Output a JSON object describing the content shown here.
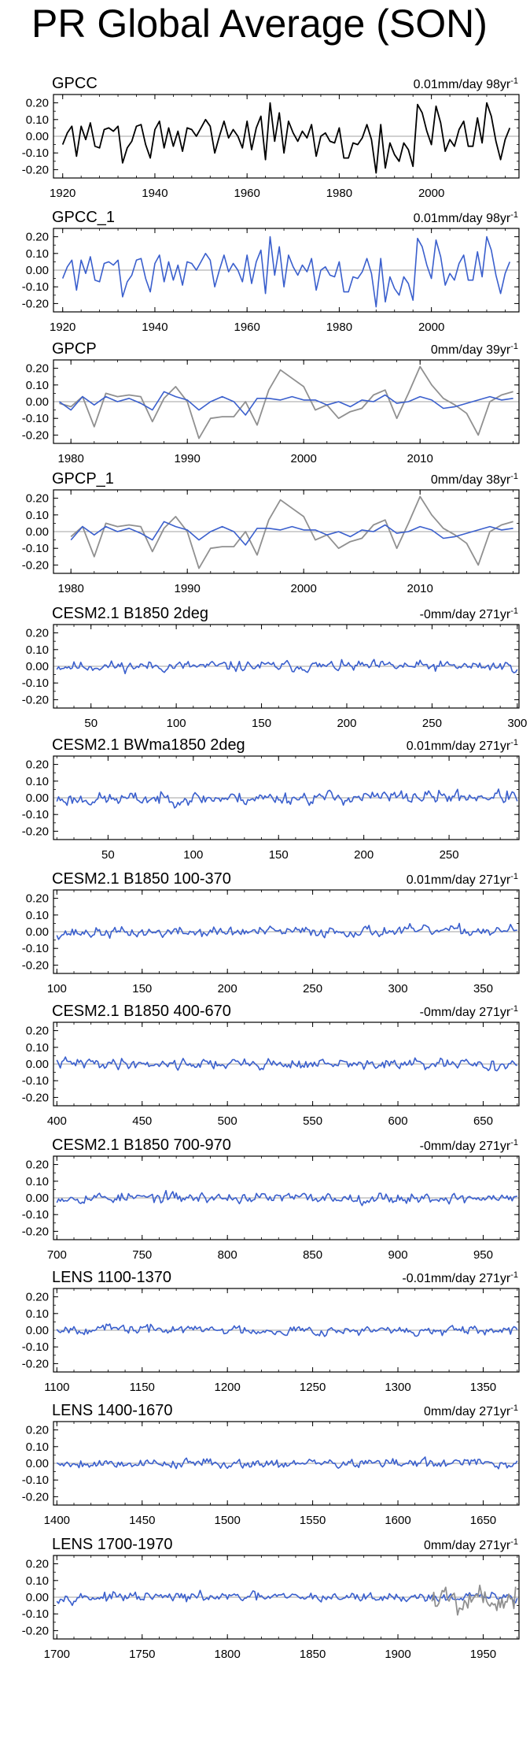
{
  "title": "PR Global Average (SON)",
  "colors": {
    "obs": "#000000",
    "model": "#3a5fcd",
    "gray": "#909090",
    "zero": "#a0a0a0",
    "frame": "#000000"
  },
  "chart_data": [
    {
      "type": "line",
      "label": "GPCC",
      "trend": "0.01mm/day 98yr",
      "trend_sup": "-1",
      "xlim": [
        1918,
        2019
      ],
      "ylim": [
        -0.25,
        0.25
      ],
      "yticks": [
        "0.20",
        "0.10",
        "0.00",
        "-0.10",
        "-0.20"
      ],
      "xticks": [
        "1920",
        "1940",
        "1960",
        "1980",
        "2000"
      ],
      "series": [
        {
          "name": "GPCC",
          "color": "#000000",
          "x_start": 1920,
          "x_step": 1,
          "values": [
            -0.05,
            0.02,
            0.06,
            -0.12,
            0.06,
            -0.02,
            0.08,
            -0.06,
            -0.07,
            0.04,
            0.05,
            0.03,
            0.06,
            -0.16,
            -0.07,
            -0.03,
            0.06,
            0.07,
            -0.05,
            -0.13,
            0.04,
            0.09,
            -0.07,
            0.05,
            -0.06,
            0.03,
            -0.09,
            0.05,
            0.04,
            0.0,
            0.05,
            0.1,
            0.06,
            -0.1,
            0.0,
            0.09,
            -0.01,
            0.04,
            0.0,
            -0.07,
            0.09,
            -0.08,
            0.05,
            0.12,
            -0.14,
            0.2,
            -0.03,
            0.14,
            -0.1,
            0.09,
            0.02,
            -0.03,
            0.03,
            -0.01,
            0.07,
            -0.12,
            0.0,
            0.02,
            -0.03,
            -0.04,
            0.05,
            -0.13,
            -0.13,
            -0.04,
            -0.05,
            -0.01,
            0.07,
            -0.02,
            -0.22,
            0.07,
            -0.19,
            -0.04,
            -0.11,
            -0.15,
            -0.04,
            -0.08,
            -0.18,
            0.19,
            0.14,
            0.03,
            -0.05,
            0.18,
            0.08,
            -0.09,
            -0.02,
            -0.06,
            0.04,
            0.09,
            -0.06,
            -0.06,
            0.11,
            -0.04,
            0.2,
            0.12,
            -0.03,
            -0.14,
            -0.02,
            0.05
          ]
        }
      ]
    },
    {
      "type": "line",
      "label": "GPCC_1",
      "trend": "0.01mm/day 98yr",
      "trend_sup": "-1",
      "xlim": [
        1918,
        2019
      ],
      "ylim": [
        -0.25,
        0.25
      ],
      "yticks": [
        "0.20",
        "0.10",
        "0.00",
        "-0.10",
        "-0.20"
      ],
      "xticks": [
        "1920",
        "1940",
        "1960",
        "1980",
        "2000"
      ],
      "series": [
        {
          "name": "GPCC_1",
          "color": "#3a5fcd",
          "x_start": 1920,
          "x_step": 1,
          "values": [
            -0.05,
            0.02,
            0.06,
            -0.12,
            0.06,
            -0.02,
            0.08,
            -0.06,
            -0.07,
            0.04,
            0.05,
            0.03,
            0.06,
            -0.16,
            -0.07,
            -0.03,
            0.06,
            0.07,
            -0.05,
            -0.13,
            0.04,
            0.09,
            -0.07,
            0.05,
            -0.06,
            0.03,
            -0.09,
            0.05,
            0.04,
            0.0,
            0.05,
            0.1,
            0.06,
            -0.1,
            0.0,
            0.09,
            -0.01,
            0.04,
            0.0,
            -0.07,
            0.09,
            -0.08,
            0.05,
            0.12,
            -0.14,
            0.2,
            -0.03,
            0.14,
            -0.1,
            0.09,
            0.02,
            -0.03,
            0.03,
            -0.01,
            0.07,
            -0.12,
            0.0,
            0.02,
            -0.03,
            -0.04,
            0.05,
            -0.13,
            -0.13,
            -0.04,
            -0.05,
            -0.01,
            0.07,
            -0.02,
            -0.22,
            0.07,
            -0.19,
            -0.04,
            -0.11,
            -0.15,
            -0.04,
            -0.08,
            -0.18,
            0.19,
            0.14,
            0.03,
            -0.05,
            0.18,
            0.08,
            -0.09,
            -0.02,
            -0.06,
            0.04,
            0.09,
            -0.06,
            -0.06,
            0.11,
            -0.04,
            0.2,
            0.12,
            -0.03,
            -0.14,
            -0.02,
            0.05
          ]
        }
      ]
    },
    {
      "type": "line",
      "label": "GPCP",
      "trend": "0mm/day 39yr",
      "trend_sup": "-1",
      "xlim": [
        1978.5,
        2018.5
      ],
      "ylim": [
        -0.25,
        0.25
      ],
      "yticks": [
        "0.20",
        "0.10",
        "0.00",
        "-0.10",
        "-0.20"
      ],
      "xticks": [
        "1980",
        "1990",
        "2000",
        "2010"
      ],
      "series": [
        {
          "name": "GPCP-gray",
          "color": "#909090",
          "x_start": 1979,
          "x_step": 1,
          "values": [
            -0.01,
            -0.03,
            0.03,
            -0.15,
            0.05,
            0.03,
            0.04,
            0.03,
            -0.12,
            0.02,
            0.09,
            0.0,
            -0.22,
            -0.1,
            -0.09,
            -0.09,
            0.0,
            -0.14,
            0.07,
            0.19,
            0.14,
            0.09,
            -0.05,
            -0.02,
            -0.1,
            -0.06,
            -0.04,
            0.04,
            0.07,
            -0.1,
            0.05,
            0.21,
            0.1,
            0.02,
            -0.02,
            -0.07,
            -0.2,
            0.0,
            0.04,
            0.06
          ]
        },
        {
          "name": "GPCP-blue",
          "color": "#3a5fcd",
          "x_start": 1979,
          "x_step": 1,
          "values": [
            0.0,
            -0.05,
            0.03,
            -0.02,
            0.03,
            0.0,
            0.02,
            -0.01,
            -0.05,
            0.06,
            0.03,
            0.01,
            -0.05,
            0.0,
            0.03,
            0.0,
            -0.08,
            0.02,
            0.02,
            0.01,
            0.03,
            0.01,
            0.01,
            -0.02,
            0.0,
            -0.03,
            0.01,
            0.0,
            0.04,
            -0.01,
            0.0,
            0.03,
            0.01,
            -0.04,
            -0.03,
            -0.01,
            0.01,
            0.03,
            0.01,
            0.02
          ]
        }
      ]
    },
    {
      "type": "line",
      "label": "GPCP_1",
      "trend": "0mm/day 38yr",
      "trend_sup": "-1",
      "xlim": [
        1978.5,
        2018.5
      ],
      "ylim": [
        -0.25,
        0.25
      ],
      "yticks": [
        "0.20",
        "0.10",
        "0.00",
        "-0.10",
        "-0.20"
      ],
      "xticks": [
        "1980",
        "1990",
        "2000",
        "2010"
      ],
      "series": [
        {
          "name": "GPCP_1-gray",
          "color": "#909090",
          "x_start": 1980,
          "x_step": 1,
          "values": [
            -0.03,
            0.03,
            -0.15,
            0.05,
            0.03,
            0.04,
            0.03,
            -0.12,
            0.02,
            0.09,
            0.0,
            -0.22,
            -0.1,
            -0.09,
            -0.09,
            0.0,
            -0.14,
            0.07,
            0.19,
            0.14,
            0.09,
            -0.05,
            -0.02,
            -0.1,
            -0.06,
            -0.04,
            0.04,
            0.07,
            -0.1,
            0.05,
            0.21,
            0.1,
            0.02,
            -0.02,
            -0.07,
            -0.2,
            0.0,
            0.04,
            0.06
          ]
        },
        {
          "name": "GPCP_1-blue",
          "color": "#3a5fcd",
          "x_start": 1980,
          "x_step": 1,
          "values": [
            -0.05,
            0.03,
            -0.02,
            0.03,
            0.0,
            0.02,
            -0.01,
            -0.05,
            0.06,
            0.03,
            0.01,
            -0.05,
            0.0,
            0.03,
            0.0,
            -0.08,
            0.02,
            0.02,
            0.01,
            0.03,
            0.01,
            0.01,
            -0.02,
            0.0,
            -0.03,
            0.01,
            0.0,
            0.04,
            -0.01,
            0.0,
            0.03,
            0.01,
            -0.04,
            -0.03,
            -0.01,
            0.01,
            0.03,
            0.01,
            0.02
          ]
        }
      ]
    },
    {
      "type": "line",
      "label": "CESM2.1 B1850 2deg",
      "trend": "-0mm/day 271yr",
      "trend_sup": "-1",
      "xlim": [
        28,
        301
      ],
      "ylim": [
        -0.25,
        0.25
      ],
      "yticks": [
        "0.20",
        "0.10",
        "0.00",
        "-0.10",
        "-0.20"
      ],
      "xticks": [
        "50",
        "100",
        "150",
        "200",
        "250",
        "300"
      ],
      "series": [
        {
          "name": "B1850 2deg",
          "color": "#3a5fcd",
          "x_start": 30,
          "x_step": 1,
          "n": 271,
          "amp": 0.045,
          "seed": 11,
          "drift": 0.0
        }
      ]
    },
    {
      "type": "line",
      "label": "CESM2.1 BWma1850 2deg",
      "trend": "0.01mm/day 271yr",
      "trend_sup": "-1",
      "xlim": [
        18,
        291
      ],
      "ylim": [
        -0.25,
        0.25
      ],
      "yticks": [
        "0.20",
        "0.10",
        "0.00",
        "-0.10",
        "-0.20"
      ],
      "xticks": [
        "50",
        "100",
        "150",
        "200",
        "250"
      ],
      "series": [
        {
          "name": "BWma1850 2deg",
          "color": "#3a5fcd",
          "x_start": 20,
          "x_step": 1,
          "n": 271,
          "amp": 0.055,
          "seed": 23,
          "drift": 0.02
        }
      ]
    },
    {
      "type": "line",
      "label": "CESM2.1 B1850 100-370",
      "trend": "0.01mm/day 271yr",
      "trend_sup": "-1",
      "xlim": [
        98,
        371
      ],
      "ylim": [
        -0.25,
        0.25
      ],
      "yticks": [
        "0.20",
        "0.10",
        "0.00",
        "-0.10",
        "-0.20"
      ],
      "xticks": [
        "100",
        "150",
        "200",
        "250",
        "300",
        "350"
      ],
      "series": [
        {
          "name": "B1850 100-370",
          "color": "#3a5fcd",
          "x_start": 100,
          "x_step": 1,
          "n": 271,
          "amp": 0.045,
          "seed": 37,
          "drift": 0.015
        }
      ]
    },
    {
      "type": "line",
      "label": "CESM2.1 B1850 400-670",
      "trend": "-0mm/day 271yr",
      "trend_sup": "-1",
      "xlim": [
        398,
        671
      ],
      "ylim": [
        -0.25,
        0.25
      ],
      "yticks": [
        "0.20",
        "0.10",
        "0.00",
        "-0.10",
        "-0.20"
      ],
      "xticks": [
        "400",
        "450",
        "500",
        "550",
        "600",
        "650"
      ],
      "series": [
        {
          "name": "B1850 400-670",
          "color": "#3a5fcd",
          "x_start": 400,
          "x_step": 1,
          "n": 271,
          "amp": 0.045,
          "seed": 41,
          "drift": -0.01
        }
      ]
    },
    {
      "type": "line",
      "label": "CESM2.1 B1850 700-970",
      "trend": "-0mm/day 271yr",
      "trend_sup": "-1",
      "xlim": [
        698,
        971
      ],
      "ylim": [
        -0.25,
        0.25
      ],
      "yticks": [
        "0.20",
        "0.10",
        "0.00",
        "-0.10",
        "-0.20"
      ],
      "xticks": [
        "700",
        "750",
        "800",
        "850",
        "900",
        "950"
      ],
      "series": [
        {
          "name": "B1850 700-970",
          "color": "#3a5fcd",
          "x_start": 700,
          "x_step": 1,
          "n": 271,
          "amp": 0.045,
          "seed": 53,
          "drift": -0.005
        }
      ]
    },
    {
      "type": "line",
      "label": "LENS 1100-1370",
      "trend": "-0.01mm/day 271yr",
      "trend_sup": "-1",
      "xlim": [
        1098,
        1371
      ],
      "ylim": [
        -0.25,
        0.25
      ],
      "yticks": [
        "0.20",
        "0.10",
        "0.00",
        "-0.10",
        "-0.20"
      ],
      "xticks": [
        "1100",
        "1150",
        "1200",
        "1250",
        "1300",
        "1350"
      ],
      "series": [
        {
          "name": "LENS 1100-1370",
          "color": "#3a5fcd",
          "x_start": 1100,
          "x_step": 1,
          "n": 271,
          "amp": 0.04,
          "seed": 67,
          "drift": -0.02
        }
      ]
    },
    {
      "type": "line",
      "label": "LENS 1400-1670",
      "trend": "0mm/day 271yr",
      "trend_sup": "-1",
      "xlim": [
        1398,
        1671
      ],
      "ylim": [
        -0.25,
        0.25
      ],
      "yticks": [
        "0.20",
        "0.10",
        "0.00",
        "-0.10",
        "-0.20"
      ],
      "xticks": [
        "1400",
        "1450",
        "1500",
        "1550",
        "1600",
        "1650"
      ],
      "series": [
        {
          "name": "LENS 1400-1670",
          "color": "#3a5fcd",
          "x_start": 1400,
          "x_step": 1,
          "n": 271,
          "amp": 0.04,
          "seed": 79,
          "drift": 0.0
        }
      ]
    },
    {
      "type": "line",
      "label": "LENS 1700-1970",
      "trend": "0mm/day 271yr",
      "trend_sup": "-1",
      "xlim": [
        1698,
        1971
      ],
      "ylim": [
        -0.25,
        0.25
      ],
      "yticks": [
        "0.20",
        "0.10",
        "0.00",
        "-0.10",
        "-0.20"
      ],
      "xticks": [
        "1700",
        "1750",
        "1800",
        "1850",
        "1900",
        "1950"
      ],
      "series": [
        {
          "name": "LENS 1700-1970",
          "color": "#3a5fcd",
          "x_start": 1700,
          "x_step": 1,
          "n": 271,
          "amp": 0.04,
          "seed": 97,
          "drift": 0.0
        },
        {
          "name": "GPCC-overlay",
          "color": "#909090",
          "x_start": 1920,
          "x_step": 1,
          "n": 50,
          "amp": 0.13,
          "seed": 5,
          "drift": 0.0
        }
      ]
    }
  ]
}
